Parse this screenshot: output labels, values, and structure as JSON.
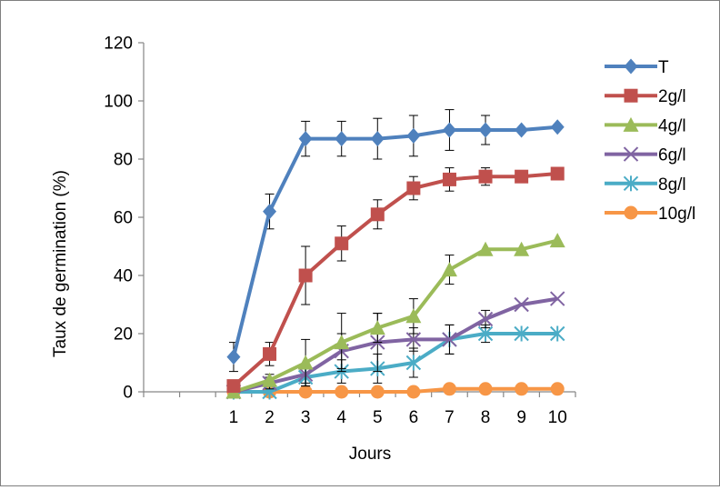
{
  "chart_data": {
    "type": "line",
    "title": "",
    "xlabel": "Jours",
    "ylabel": "Taux de germination (%)",
    "x": [
      1,
      2,
      3,
      4,
      5,
      6,
      7,
      8,
      9,
      10
    ],
    "x_tick_labels": [
      "1",
      "2",
      "3",
      "4",
      "5",
      "6",
      "7",
      "8",
      "9",
      "10"
    ],
    "ylim": [
      0,
      120
    ],
    "y_ticks": [
      0,
      20,
      40,
      60,
      80,
      100,
      120
    ],
    "grid": false,
    "legend_position": "right",
    "series": [
      {
        "name": "T",
        "color": "#4f81bd",
        "marker": "diamond",
        "values": [
          12,
          62,
          87,
          87,
          87,
          88,
          90,
          90,
          90,
          91
        ],
        "errors": [
          5,
          6,
          6,
          6,
          7,
          7,
          7,
          5,
          0,
          0
        ]
      },
      {
        "name": "2g/l",
        "color": "#c0504d",
        "marker": "square",
        "values": [
          2,
          13,
          40,
          51,
          61,
          70,
          73,
          74,
          74,
          75
        ],
        "errors": [
          2,
          4,
          10,
          6,
          5,
          4,
          4,
          3,
          0,
          0
        ]
      },
      {
        "name": "4g/l",
        "color": "#9bbb59",
        "marker": "triangle",
        "values": [
          0,
          4,
          10,
          17,
          22,
          26,
          42,
          49,
          49,
          52
        ],
        "errors": [
          0,
          2,
          8,
          10,
          5,
          6,
          5,
          0,
          0,
          0
        ]
      },
      {
        "name": "6g/l",
        "color": "#8064a2",
        "marker": "x",
        "values": [
          0,
          3,
          6,
          14,
          17,
          18,
          18,
          25,
          30,
          32
        ],
        "errors": [
          0,
          2,
          3,
          6,
          10,
          4,
          5,
          3,
          0,
          0
        ]
      },
      {
        "name": "8g/l",
        "color": "#4bacc6",
        "marker": "star",
        "values": [
          0,
          0,
          5,
          7,
          8,
          10,
          18,
          20,
          20,
          20
        ],
        "errors": [
          0,
          0,
          3,
          4,
          5,
          5,
          5,
          3,
          0,
          0
        ]
      },
      {
        "name": "10g/l",
        "color": "#f79646",
        "marker": "circle",
        "values": [
          0,
          0,
          0,
          0,
          0,
          0,
          1,
          1,
          1,
          1
        ],
        "errors": [
          0,
          0,
          0,
          0,
          0,
          0,
          0,
          0,
          0,
          0
        ]
      }
    ]
  }
}
